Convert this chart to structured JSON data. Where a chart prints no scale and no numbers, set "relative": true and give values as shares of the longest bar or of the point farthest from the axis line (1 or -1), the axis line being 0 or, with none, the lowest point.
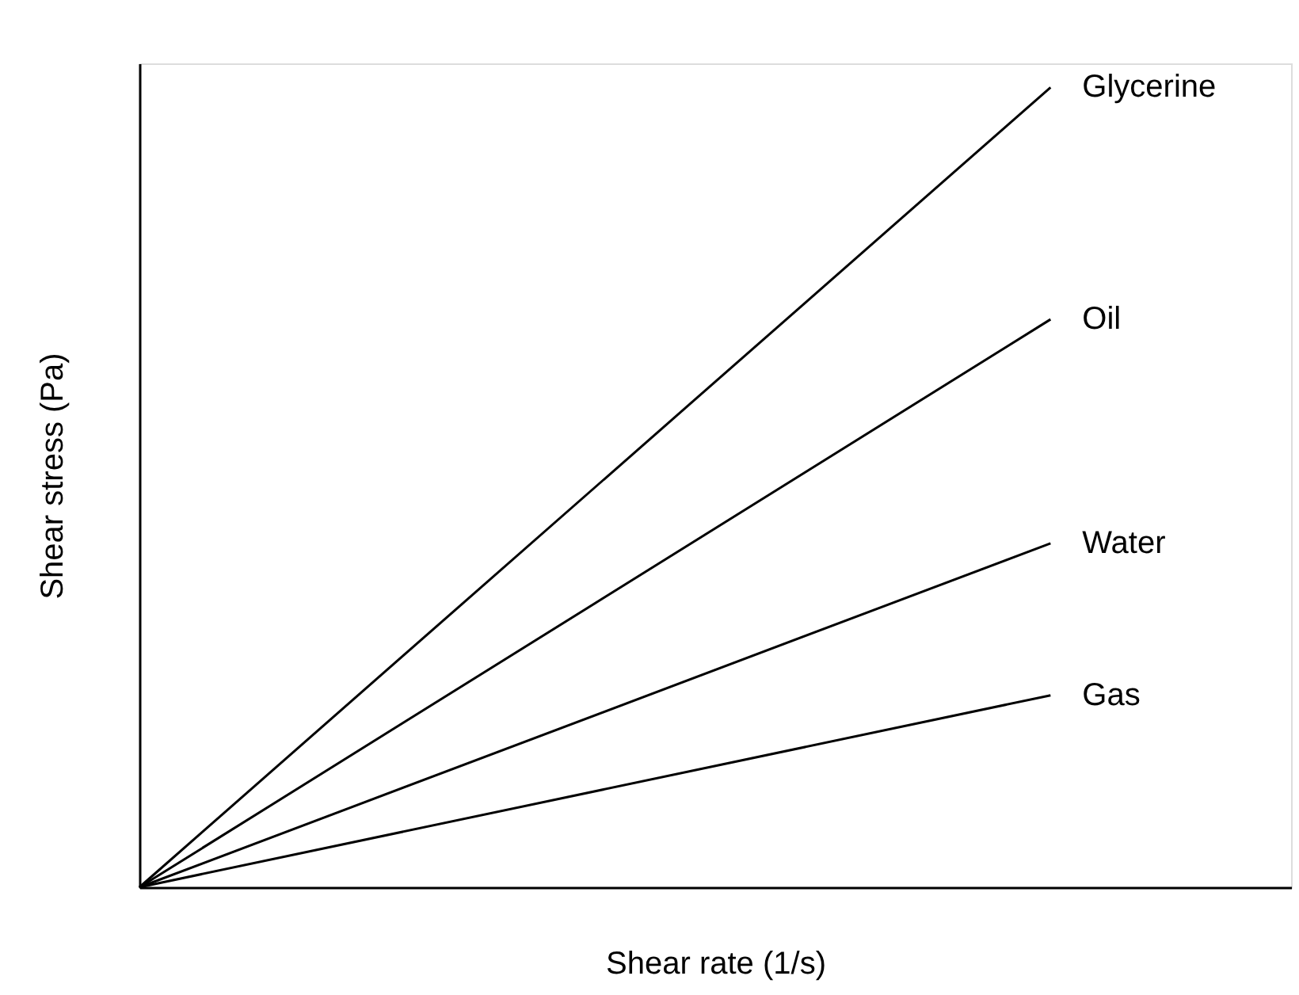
{
  "chart_data": {
    "type": "line",
    "relative": true,
    "xlabel": "Shear rate (1/s)",
    "ylabel": "Shear stress (Pa)",
    "marker": "none",
    "line_style": "solid",
    "categories": [
      null,
      null
    ],
    "series": [
      {
        "name": "Glycerine",
        "color": "#000000",
        "values": [
          0,
          1
        ]
      },
      {
        "name": "Oil",
        "color": "#000000",
        "values": [
          0,
          0.71
        ]
      },
      {
        "name": "Water",
        "color": "#000000",
        "values": [
          0,
          0.43
        ]
      },
      {
        "name": "Gas",
        "color": "#000000",
        "values": [
          0,
          0.24
        ]
      }
    ]
  }
}
